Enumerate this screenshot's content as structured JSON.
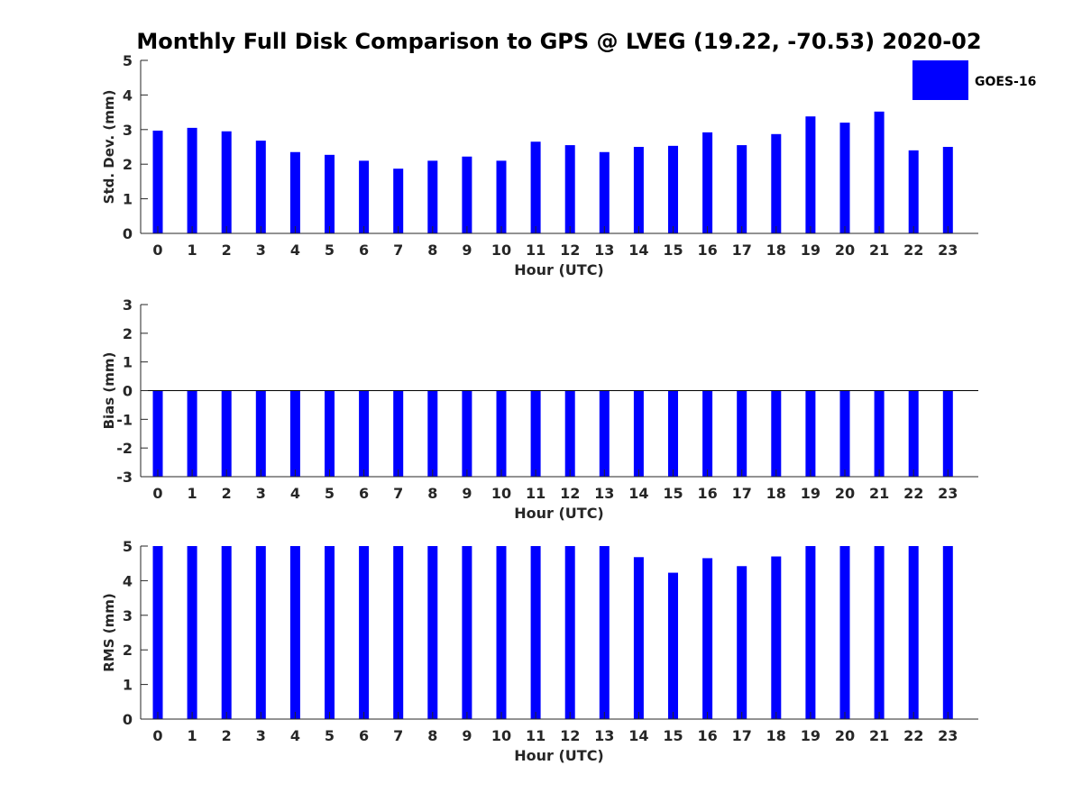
{
  "title": "Monthly Full Disk Comparison to GPS @ LVEG (19.22, -70.53) 2020-02",
  "legend": {
    "label": "GOES-16",
    "position": "top-right"
  },
  "colors": {
    "bar": "#0000ff",
    "axis": "#262626",
    "title": "#000000"
  },
  "chart_data": [
    {
      "type": "bar",
      "name": "std-dev",
      "xlabel": "Hour (UTC)",
      "ylabel": "Std. Dev. (mm)",
      "ylim": [
        0,
        5
      ],
      "yticks": [
        0,
        1,
        2,
        3,
        4,
        5
      ],
      "categories": [
        "0",
        "1",
        "2",
        "3",
        "4",
        "5",
        "6",
        "7",
        "8",
        "9",
        "10",
        "11",
        "12",
        "13",
        "14",
        "15",
        "16",
        "17",
        "18",
        "19",
        "20",
        "21",
        "22",
        "23"
      ],
      "series": [
        {
          "name": "GOES-16",
          "values": [
            2.97,
            3.05,
            2.95,
            2.68,
            2.35,
            2.27,
            2.1,
            1.87,
            2.1,
            2.22,
            2.1,
            2.65,
            2.55,
            2.35,
            2.5,
            2.53,
            2.92,
            2.55,
            2.87,
            3.38,
            3.2,
            3.52,
            2.4,
            2.5
          ]
        }
      ]
    },
    {
      "type": "bar",
      "name": "bias",
      "xlabel": "Hour (UTC)",
      "ylabel": "Bias (mm)",
      "ylim": [
        -3,
        3
      ],
      "yticks": [
        -3,
        -2,
        -1,
        0,
        1,
        2,
        3
      ],
      "zero_line": true,
      "categories": [
        "0",
        "1",
        "2",
        "3",
        "4",
        "5",
        "6",
        "7",
        "8",
        "9",
        "10",
        "11",
        "12",
        "13",
        "14",
        "15",
        "16",
        "17",
        "18",
        "19",
        "20",
        "21",
        "22",
        "23"
      ],
      "series": [
        {
          "name": "GOES-16",
          "values": [
            -3,
            -3,
            -3,
            -3,
            -3,
            -3,
            -3,
            -3,
            -3,
            -3,
            -3,
            -3,
            -3,
            -3,
            -3,
            -3,
            -3,
            -3,
            -3,
            -3,
            -3,
            -3,
            -3,
            -3
          ]
        }
      ]
    },
    {
      "type": "bar",
      "name": "rms",
      "xlabel": "Hour (UTC)",
      "ylabel": "RMS (mm)",
      "ylim": [
        0,
        5
      ],
      "yticks": [
        0,
        1,
        2,
        3,
        4,
        5
      ],
      "categories": [
        "0",
        "1",
        "2",
        "3",
        "4",
        "5",
        "6",
        "7",
        "8",
        "9",
        "10",
        "11",
        "12",
        "13",
        "14",
        "15",
        "16",
        "17",
        "18",
        "19",
        "20",
        "21",
        "22",
        "23"
      ],
      "series": [
        {
          "name": "GOES-16",
          "values": [
            5,
            5,
            5,
            5,
            5,
            5,
            5,
            5,
            5,
            5,
            5,
            5,
            5,
            5,
            4.68,
            4.23,
            4.65,
            4.42,
            4.7,
            5,
            5,
            5,
            5,
            5
          ]
        }
      ]
    }
  ]
}
